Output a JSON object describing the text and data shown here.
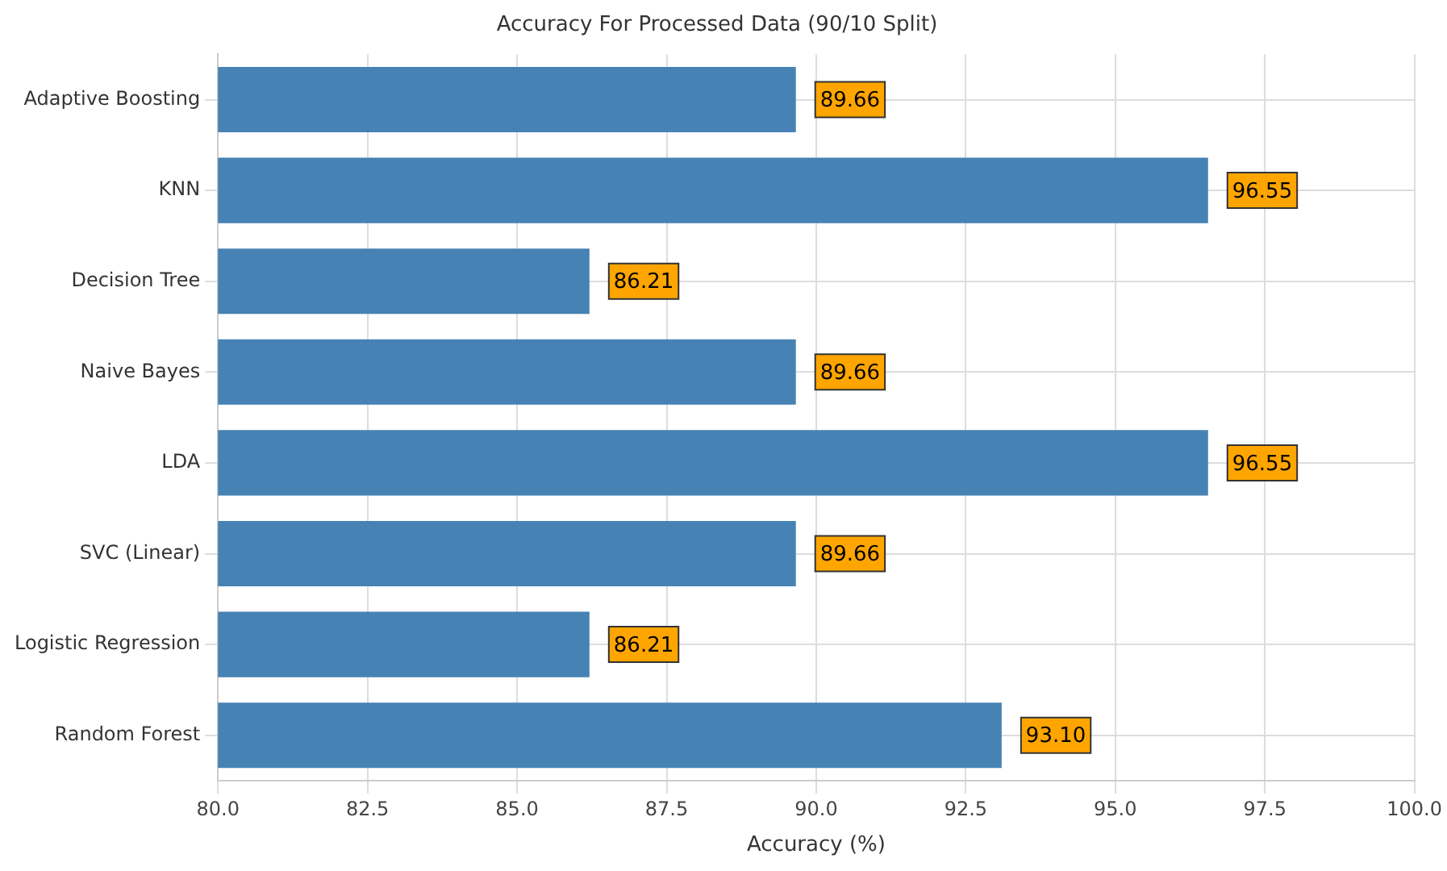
{
  "chart_data": {
    "type": "bar",
    "orientation": "horizontal",
    "title": "Accuracy For Processed Data (90/10 Split)",
    "xlabel": "Accuracy (%)",
    "categories": [
      "Adaptive Boosting",
      "KNN",
      "Decision Tree",
      "Naive Bayes",
      "LDA",
      "SVC (Linear)",
      "Logistic Regression",
      "Random Forest"
    ],
    "values": [
      89.66,
      96.55,
      86.21,
      89.66,
      96.55,
      89.66,
      86.21,
      93.1
    ],
    "value_labels": [
      "89.66",
      "96.55",
      "86.21",
      "89.66",
      "96.55",
      "89.66",
      "86.21",
      "93.10"
    ],
    "color": "#4682b4",
    "xlim": [
      80,
      100
    ],
    "xticks": [
      {
        "value": 80,
        "label": "80.0"
      },
      {
        "value": 82.5,
        "label": "82.5"
      },
      {
        "value": 85,
        "label": "85.0"
      },
      {
        "value": 87.5,
        "label": "87.5"
      },
      {
        "value": 90,
        "label": "90.0"
      },
      {
        "value": 92.5,
        "label": "92.5"
      },
      {
        "value": 95,
        "label": "95.0"
      },
      {
        "value": 97.5,
        "label": "97.5"
      },
      {
        "value": 100,
        "label": "100.0"
      }
    ],
    "grid": true
  }
}
